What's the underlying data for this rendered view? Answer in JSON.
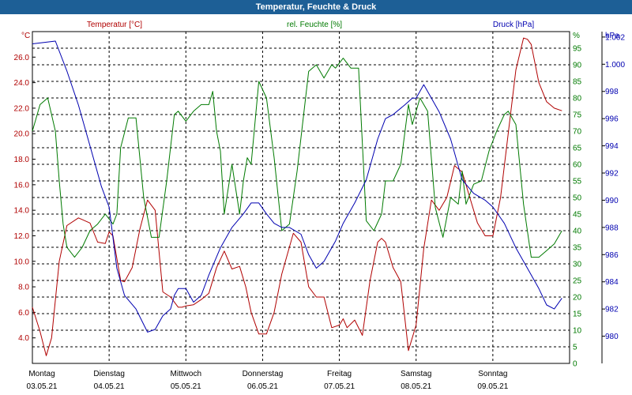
{
  "window": {
    "title": "Temperatur, Feuchte & Druck"
  },
  "chart_data": {
    "type": "line",
    "title": "Temperatur, Feuchte & Druck",
    "grid": true,
    "colors": {
      "temperature": "#b00000",
      "humidity": "#007a00",
      "pressure": "#0000b0",
      "title_bar": "#1d5f96"
    },
    "x_labels": [
      {
        "day": "Montag",
        "date": "03.05.21"
      },
      {
        "day": "Dienstag",
        "date": "04.05.21"
      },
      {
        "day": "Mittwoch",
        "date": "05.05.21"
      },
      {
        "day": "Donnerstag",
        "date": "06.05.21"
      },
      {
        "day": "Freitag",
        "date": "07.05.21"
      },
      {
        "day": "Samstag",
        "date": "08.05.21"
      },
      {
        "day": "Sonntag",
        "date": "09.05.21"
      }
    ],
    "xlim": [
      0,
      7
    ],
    "axes": {
      "temperature": {
        "label": "Temperatur [°C]",
        "unit": "°C",
        "ylim": [
          2.0,
          28.0
        ],
        "ticks": [
          "4.0",
          "6.0",
          "8.0",
          "10.0",
          "12.0",
          "14.0",
          "16.0",
          "18.0",
          "20.0",
          "22.0",
          "24.0",
          "26.0"
        ]
      },
      "humidity": {
        "label": "rel. Feuchte [%]",
        "unit": "%",
        "ylim": [
          0,
          100
        ],
        "ticks": [
          "0",
          "5",
          "10",
          "15",
          "20",
          "25",
          "30",
          "35",
          "40",
          "45",
          "50",
          "55",
          "60",
          "65",
          "70",
          "75",
          "80",
          "85",
          "90",
          "95"
        ]
      },
      "pressure": {
        "label": "Druck [hPa]",
        "unit": "hPa",
        "ylim": [
          978.0,
          1002.4
        ],
        "ticks": [
          "980",
          "982",
          "984",
          "986",
          "988",
          "990",
          "992",
          "994",
          "996",
          "998",
          "1.000",
          "1.002"
        ]
      }
    },
    "series": [
      {
        "name": "Temperatur [°C]",
        "axis": "temperature",
        "x": [
          0,
          0.1,
          0.18,
          0.25,
          0.35,
          0.45,
          0.6,
          0.75,
          0.85,
          0.95,
          1.0,
          1.05,
          1.15,
          1.2,
          1.3,
          1.4,
          1.5,
          1.6,
          1.7,
          1.8,
          1.9,
          1.95,
          2.0,
          2.1,
          2.2,
          2.3,
          2.4,
          2.5,
          2.6,
          2.7,
          2.78,
          2.85,
          2.95,
          3.05,
          3.15,
          3.25,
          3.4,
          3.5,
          3.6,
          3.7,
          3.8,
          3.9,
          4.0,
          4.05,
          4.1,
          4.2,
          4.3,
          4.4,
          4.5,
          4.55,
          4.6,
          4.7,
          4.8,
          4.9,
          5.0,
          5.1,
          5.2,
          5.3,
          5.4,
          5.5,
          5.6,
          5.7,
          5.8,
          5.9,
          6.0,
          6.1,
          6.2,
          6.3,
          6.4,
          6.45,
          6.5,
          6.6,
          6.7,
          6.8,
          6.9
        ],
        "values": [
          6.4,
          4.5,
          2.6,
          4.0,
          10.0,
          12.8,
          13.4,
          13.0,
          11.5,
          11.4,
          12.3,
          12.0,
          8.5,
          8.4,
          9.5,
          12.5,
          14.8,
          14.0,
          7.6,
          7.2,
          6.4,
          6.4,
          6.5,
          6.6,
          7.0,
          7.5,
          9.5,
          10.8,
          9.4,
          9.6,
          8.0,
          6.0,
          4.3,
          4.3,
          6.0,
          9.0,
          12.2,
          11.5,
          8.0,
          7.2,
          7.2,
          4.8,
          5.0,
          5.5,
          4.8,
          5.4,
          4.2,
          8.5,
          11.5,
          11.8,
          11.5,
          9.5,
          8.4,
          3.0,
          5.0,
          11.0,
          14.8,
          14.0,
          15.0,
          17.5,
          17.0,
          15.0,
          13.0,
          12.0,
          12.0,
          15.0,
          20.0,
          25.0,
          27.5,
          27.4,
          27.0,
          24.0,
          22.5,
          22.0,
          21.8
        ]
      },
      {
        "name": "rel. Feuchte [%]",
        "axis": "humidity",
        "x": [
          0,
          0.1,
          0.2,
          0.3,
          0.35,
          0.4,
          0.45,
          0.55,
          0.65,
          0.75,
          0.85,
          0.95,
          1.05,
          1.1,
          1.15,
          1.25,
          1.35,
          1.45,
          1.55,
          1.65,
          1.75,
          1.85,
          1.9,
          2.0,
          2.1,
          2.2,
          2.3,
          2.35,
          2.4,
          2.45,
          2.5,
          2.6,
          2.7,
          2.75,
          2.8,
          2.85,
          2.95,
          3.05,
          3.15,
          3.25,
          3.35,
          3.45,
          3.6,
          3.7,
          3.8,
          3.9,
          3.95,
          4.05,
          4.15,
          4.25,
          4.35,
          4.45,
          4.55,
          4.6,
          4.7,
          4.8,
          4.9,
          4.95,
          5.05,
          5.15,
          5.25,
          5.35,
          5.45,
          5.55,
          5.6,
          5.65,
          5.75,
          5.85,
          5.95,
          6.05,
          6.15,
          6.2,
          6.3,
          6.4,
          6.5,
          6.6,
          6.7,
          6.8,
          6.9
        ],
        "values": [
          70,
          78,
          80,
          70,
          55,
          42,
          35,
          32,
          35,
          40,
          42,
          45,
          42,
          45,
          65,
          74,
          74,
          50,
          38,
          38,
          55,
          75,
          76,
          73,
          76,
          78,
          78,
          82,
          70,
          64,
          45,
          60,
          45,
          55,
          62,
          60,
          85,
          80,
          62,
          40,
          42,
          58,
          88,
          90,
          86,
          90,
          89,
          92,
          89,
          89,
          43,
          40,
          45,
          55,
          55,
          60,
          78,
          72,
          80,
          76,
          47,
          38,
          50,
          48,
          58,
          48,
          54,
          55,
          64,
          70,
          75,
          76,
          72,
          48,
          32,
          32,
          34,
          36,
          40
        ]
      },
      {
        "name": "Druck [hPa]",
        "axis": "pressure",
        "x": [
          0,
          0.15,
          0.3,
          0.45,
          0.6,
          0.75,
          0.9,
          1.0,
          1.1,
          1.2,
          1.35,
          1.5,
          1.6,
          1.7,
          1.8,
          1.85,
          1.9,
          2.0,
          2.1,
          2.2,
          2.3,
          2.45,
          2.6,
          2.75,
          2.85,
          2.95,
          3.05,
          3.15,
          3.25,
          3.35,
          3.5,
          3.6,
          3.7,
          3.8,
          3.95,
          4.05,
          4.2,
          4.35,
          4.5,
          4.6,
          4.7,
          4.85,
          4.95,
          5.0,
          5.1,
          5.2,
          5.3,
          5.45,
          5.6,
          5.75,
          5.9,
          6.0,
          6.15,
          6.3,
          6.45,
          6.6,
          6.7,
          6.8,
          6.9
        ],
        "values": [
          1001.5,
          1001.6,
          1001.7,
          999.5,
          997.0,
          994.0,
          991.0,
          989.5,
          985.0,
          983.0,
          982.0,
          980.3,
          980.5,
          981.5,
          982.0,
          983.0,
          983.5,
          983.5,
          982.5,
          983.0,
          984.5,
          986.5,
          988.0,
          989.0,
          989.8,
          989.8,
          989.0,
          988.3,
          988.0,
          988.0,
          987.5,
          986.0,
          985.0,
          985.5,
          987.0,
          988.3,
          989.8,
          991.5,
          994.5,
          996.0,
          996.3,
          997.0,
          997.5,
          997.5,
          998.5,
          997.5,
          996.5,
          994.5,
          991.5,
          990.5,
          990.0,
          989.5,
          988.3,
          986.5,
          985.0,
          983.5,
          982.3,
          982.0,
          982.8
        ]
      }
    ]
  }
}
